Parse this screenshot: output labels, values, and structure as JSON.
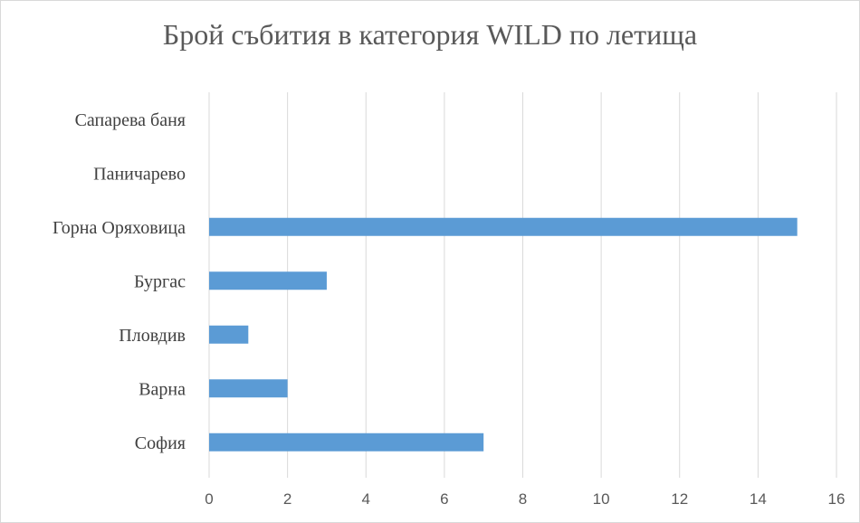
{
  "chart_data": {
    "type": "bar",
    "orientation": "horizontal",
    "title": "Брой събития в категория WILD по летища",
    "categories": [
      "София",
      "Варна",
      "Пловдив",
      "Бургас",
      "Горна Оряховица",
      "Паничарево",
      "Сапарева баня"
    ],
    "values": [
      7,
      2,
      1,
      3,
      15,
      0,
      0
    ],
    "xlim": [
      0,
      16
    ],
    "xticks": [
      0,
      2,
      4,
      6,
      8,
      10,
      12,
      14,
      16
    ],
    "xlabel": "",
    "ylabel": "",
    "grid": "vertical",
    "legend": "none",
    "bar_color": "#5b9bd5",
    "grid_color": "#d9d9d9"
  }
}
